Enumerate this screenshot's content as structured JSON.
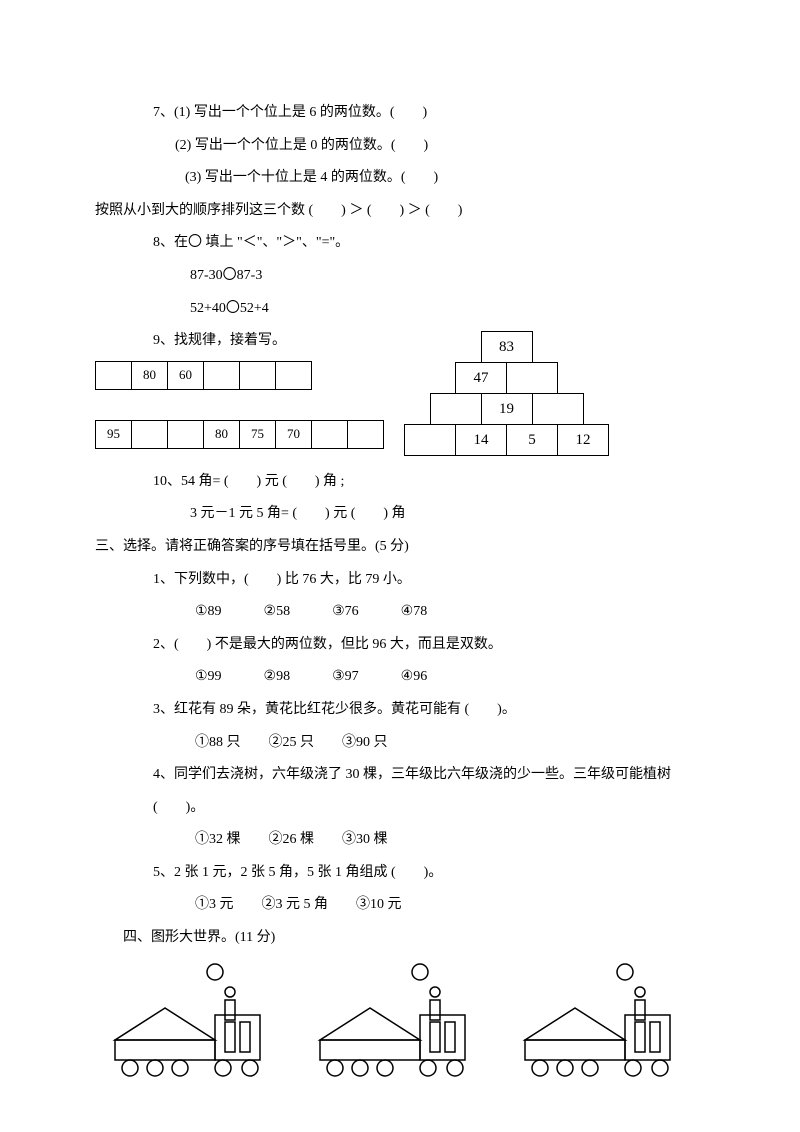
{
  "q7": {
    "line1": "7、(1) 写出一个个位上是 6 的两位数。(　　)",
    "line2": "(2) 写出一个个位上是 0 的两位数。(　　)",
    "line3": "(3) 写出一个十位上是 4 的两位数。(　　)",
    "order": "按照从小到大的顺序排列这三个数 (　　) ＞ (　　) ＞ (　　)"
  },
  "q8": {
    "title": "8、在〇 填上 \"＜\"、\"＞\"、\"=\"。",
    "e1": "87-30〇87-3",
    "e2": "52+40〇52+4"
  },
  "q9": {
    "title": "9、找规律，接着写。",
    "seq1": [
      "",
      "80",
      "60",
      "",
      "",
      ""
    ],
    "seq2": [
      "95",
      "",
      "",
      "80",
      "75",
      "70",
      "",
      ""
    ],
    "pyramid": {
      "r1": [
        "83"
      ],
      "r2": [
        "47",
        ""
      ],
      "r3": [
        "",
        "19",
        ""
      ],
      "r4": [
        "",
        "14",
        "5",
        "12"
      ]
    }
  },
  "q10": {
    "l1": "10、54 角= (　　) 元 (　　) 角 ;",
    "l2": "3 元－1 元 5 角= (　　) 元 (　　) 角"
  },
  "sec3": {
    "title": "三、选择。请将正确答案的序号填在括号里。(5 分)",
    "q1": {
      "stem": "1、下列数中，(　　) 比 76 大，比 79 小。",
      "opts": "①89　　　②58　　　③76　　　④78"
    },
    "q2": {
      "stem": "2、(　　) 不是最大的两位数，但比 96 大，而且是双数。",
      "opts": "①99　　　②98　　　③97　　　④96"
    },
    "q3": {
      "stem": "3、红花有 89 朵，黄花比红花少很多。黄花可能有 (　　)。",
      "opts": "①88 只　　②25 只　　③90 只"
    },
    "q4": {
      "stem": "4、同学们去浇树，六年级浇了 30 棵，三年级比六年级浇的少一些。三年级可能植树",
      "stem2": "(　　)。",
      "opts": "①32 棵　　②26 棵　　③30 棵"
    },
    "q5": {
      "stem": "5、2 张 1 元，2 张 5 角，5 张 1 角组成 (　　)。",
      "opts": "①3 元　　②3 元 5 角　　③10 元"
    }
  },
  "sec4": {
    "title": "四、图形大世界。(11 分)"
  },
  "style": {
    "stroke": "#000000",
    "fill": "#ffffff"
  }
}
